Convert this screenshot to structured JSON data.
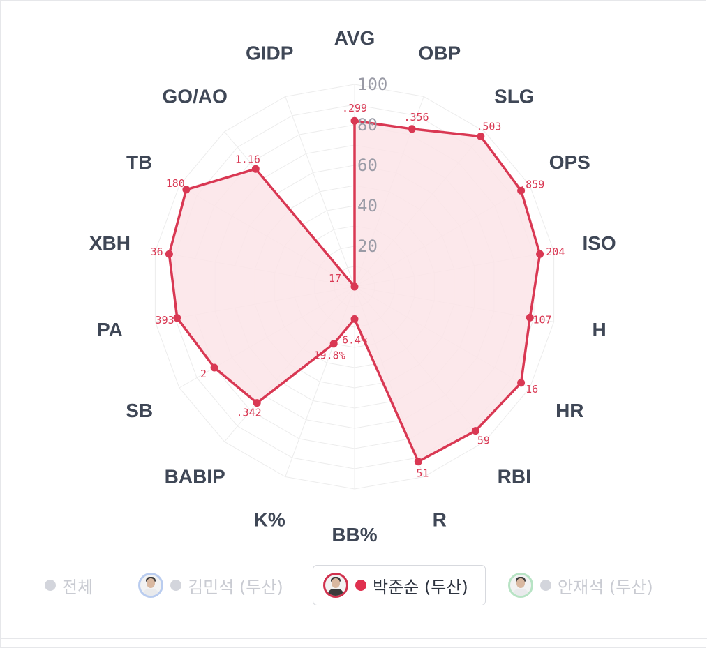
{
  "chart_data": {
    "type": "radar",
    "title": "",
    "r_ticks": [
      "20",
      "40",
      "60",
      "80",
      "100"
    ],
    "rlim": [
      0,
      100
    ],
    "axes": [
      {
        "label": "AVG",
        "percentile": 82,
        "value_label": ".299"
      },
      {
        "label": "OBP",
        "percentile": 83,
        "value_label": ".356"
      },
      {
        "label": "SLG",
        "percentile": 97,
        "value_label": ".503"
      },
      {
        "label": "OPS",
        "percentile": 95,
        "value_label": ".859"
      },
      {
        "label": "ISO",
        "percentile": 93,
        "value_label": ".204"
      },
      {
        "label": "H",
        "percentile": 88,
        "value_label": "107"
      },
      {
        "label": "HR",
        "percentile": 95,
        "value_label": "16"
      },
      {
        "label": "RBI",
        "percentile": 93,
        "value_label": "59"
      },
      {
        "label": "R",
        "percentile": 92,
        "value_label": "51"
      },
      {
        "label": "BB%",
        "percentile": 16,
        "value_label": "6.4%"
      },
      {
        "label": "K%",
        "percentile": 30,
        "value_label": "19.8%"
      },
      {
        "label": "BABIP",
        "percentile": 75,
        "value_label": ".342"
      },
      {
        "label": "SB",
        "percentile": 80,
        "value_label": "2"
      },
      {
        "label": "PA",
        "percentile": 89,
        "value_label": "393"
      },
      {
        "label": "XBH",
        "percentile": 93,
        "value_label": "36"
      },
      {
        "label": "TB",
        "percentile": 96,
        "value_label": "180"
      },
      {
        "label": "GO/AO",
        "percentile": 76,
        "value_label": "1.16"
      },
      {
        "label": "GIDP",
        "percentile": 0,
        "value_label": "17"
      }
    ],
    "series": [
      {
        "name": "박준순 (두산)",
        "color": "#d93853",
        "fill": "#fbe4e8"
      }
    ],
    "grid": true
  },
  "legend": {
    "items": [
      {
        "label": "전체",
        "active": false,
        "avatar": "none"
      },
      {
        "label": "김민석 (두산)",
        "active": false,
        "avatar": "blue"
      },
      {
        "label": "박준순 (두산)",
        "active": true,
        "avatar": "red"
      },
      {
        "label": "안재석 (두산)",
        "active": false,
        "avatar": "green"
      }
    ]
  },
  "colors": {
    "series": "#d93853",
    "axis_label": "#3f4756",
    "tick_label": "#9a9ba6",
    "grid": "#ececec",
    "inactive_legend": "#c9cbd2"
  }
}
